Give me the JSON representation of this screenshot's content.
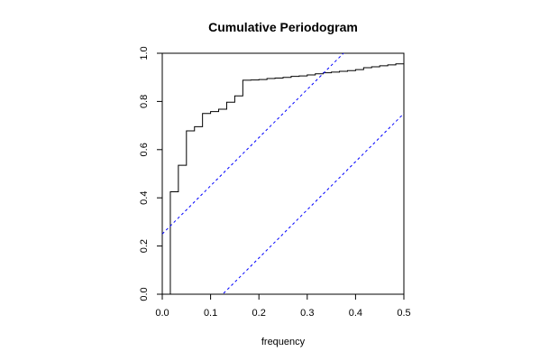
{
  "chart_data": {
    "type": "line",
    "title": "Cumulative Periodogram",
    "xlabel": "frequency",
    "ylabel": "",
    "xlim": [
      0,
      0.5
    ],
    "ylim": [
      0,
      1
    ],
    "xticks": [
      0.0,
      0.1,
      0.2,
      0.3,
      0.4,
      0.5
    ],
    "xtick_labels": [
      "0.0",
      "0.1",
      "0.2",
      "0.3",
      "0.4",
      "0.5"
    ],
    "yticks": [
      0.0,
      0.2,
      0.4,
      0.6,
      0.8,
      1.0
    ],
    "ytick_labels": [
      "0.0",
      "0.2",
      "0.4",
      "0.6",
      "0.8",
      "1.0"
    ],
    "grid": false,
    "series": [
      {
        "style": "step",
        "color": "#000000",
        "x": [
          0.0167,
          0.0333,
          0.05,
          0.0667,
          0.0833,
          0.1,
          0.1167,
          0.1333,
          0.15,
          0.1667,
          0.1833,
          0.2,
          0.2167,
          0.2333,
          0.25,
          0.2667,
          0.2833,
          0.3,
          0.3167,
          0.3333,
          0.35,
          0.3667,
          0.3833,
          0.4,
          0.4167,
          0.4333,
          0.45,
          0.4667,
          0.4833,
          0.5
        ],
        "y": [
          0.425,
          0.535,
          0.678,
          0.695,
          0.75,
          0.758,
          0.768,
          0.797,
          0.823,
          0.888,
          0.889,
          0.891,
          0.895,
          0.897,
          0.9,
          0.904,
          0.906,
          0.91,
          0.915,
          0.919,
          0.922,
          0.925,
          0.928,
          0.932,
          0.94,
          0.944,
          0.948,
          0.952,
          0.956,
          1.0
        ]
      },
      {
        "style": "dashed",
        "color": "#0000ff",
        "x": [
          0.0,
          0.5
        ],
        "y": [
          0.25,
          1.25
        ]
      },
      {
        "style": "dashed",
        "color": "#0000ff",
        "x": [
          0.0,
          0.5
        ],
        "y": [
          -0.25,
          0.75
        ]
      }
    ]
  }
}
